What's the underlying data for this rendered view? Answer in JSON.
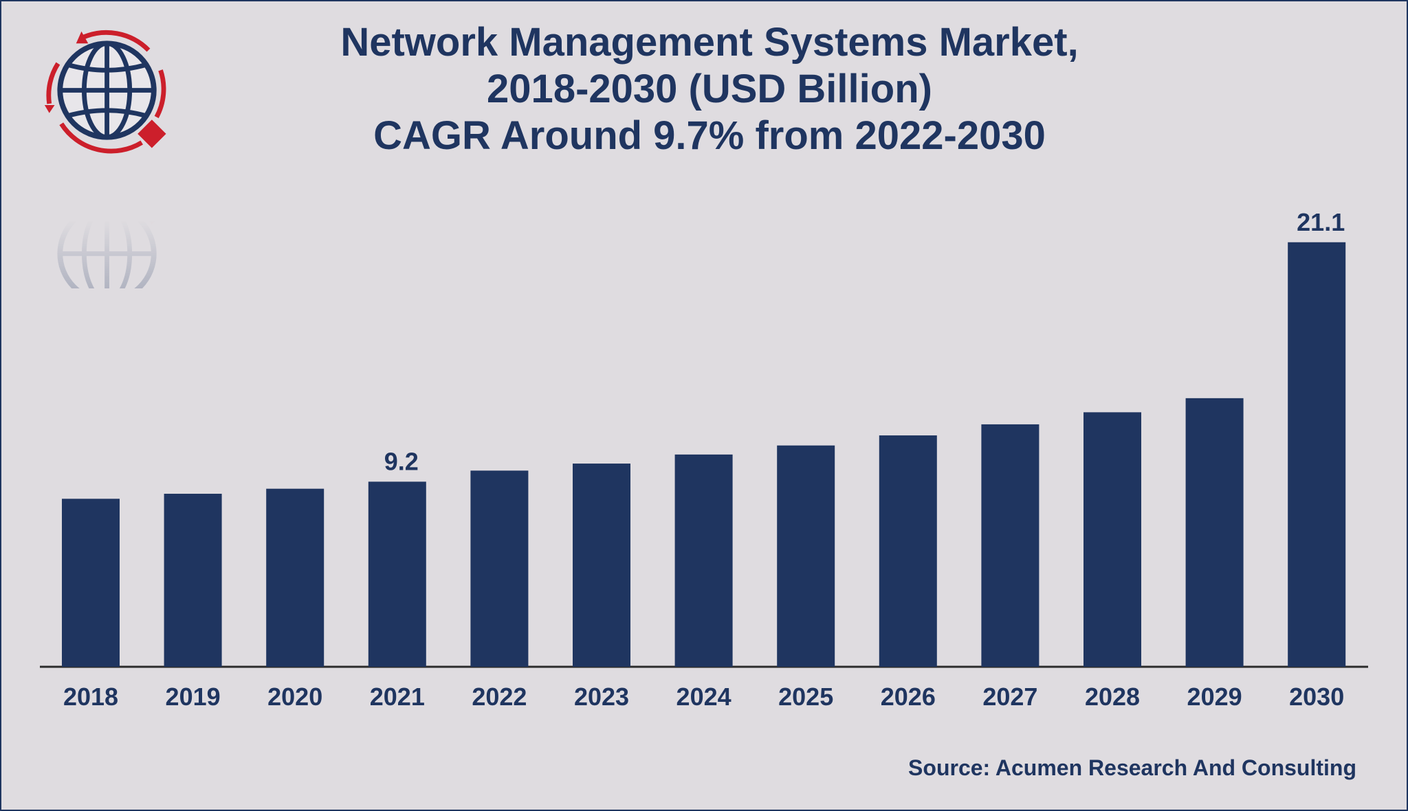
{
  "title_lines": [
    "Network Management Systems Market,",
    "2018-2030 (USD Billion)",
    "CAGR Around 9.7% from 2022-2030"
  ],
  "source": "Source: Acumen Research And Consulting",
  "colors": {
    "bar": "#1f3560",
    "accent": "#cc1f2b",
    "background": "#dfdce0"
  },
  "icons": {
    "logo": "globe-logo-icon"
  },
  "chart_data": {
    "type": "bar",
    "title": "Network Management Systems Market, 2018-2030 (USD Billion) CAGR Around 9.7% from 2022-2030",
    "categories": [
      "2018",
      "2019",
      "2020",
      "2021",
      "2022",
      "2023",
      "2024",
      "2025",
      "2026",
      "2027",
      "2028",
      "2029",
      "2030"
    ],
    "values": [
      8.35,
      8.6,
      8.85,
      9.2,
      9.75,
      10.1,
      10.55,
      11.0,
      11.5,
      12.05,
      12.65,
      13.35,
      21.1
    ],
    "data_labels": {
      "2021": "9.2",
      "2030": "21.1"
    },
    "ylim": [
      0,
      25
    ],
    "grid": false,
    "legend": "none"
  }
}
